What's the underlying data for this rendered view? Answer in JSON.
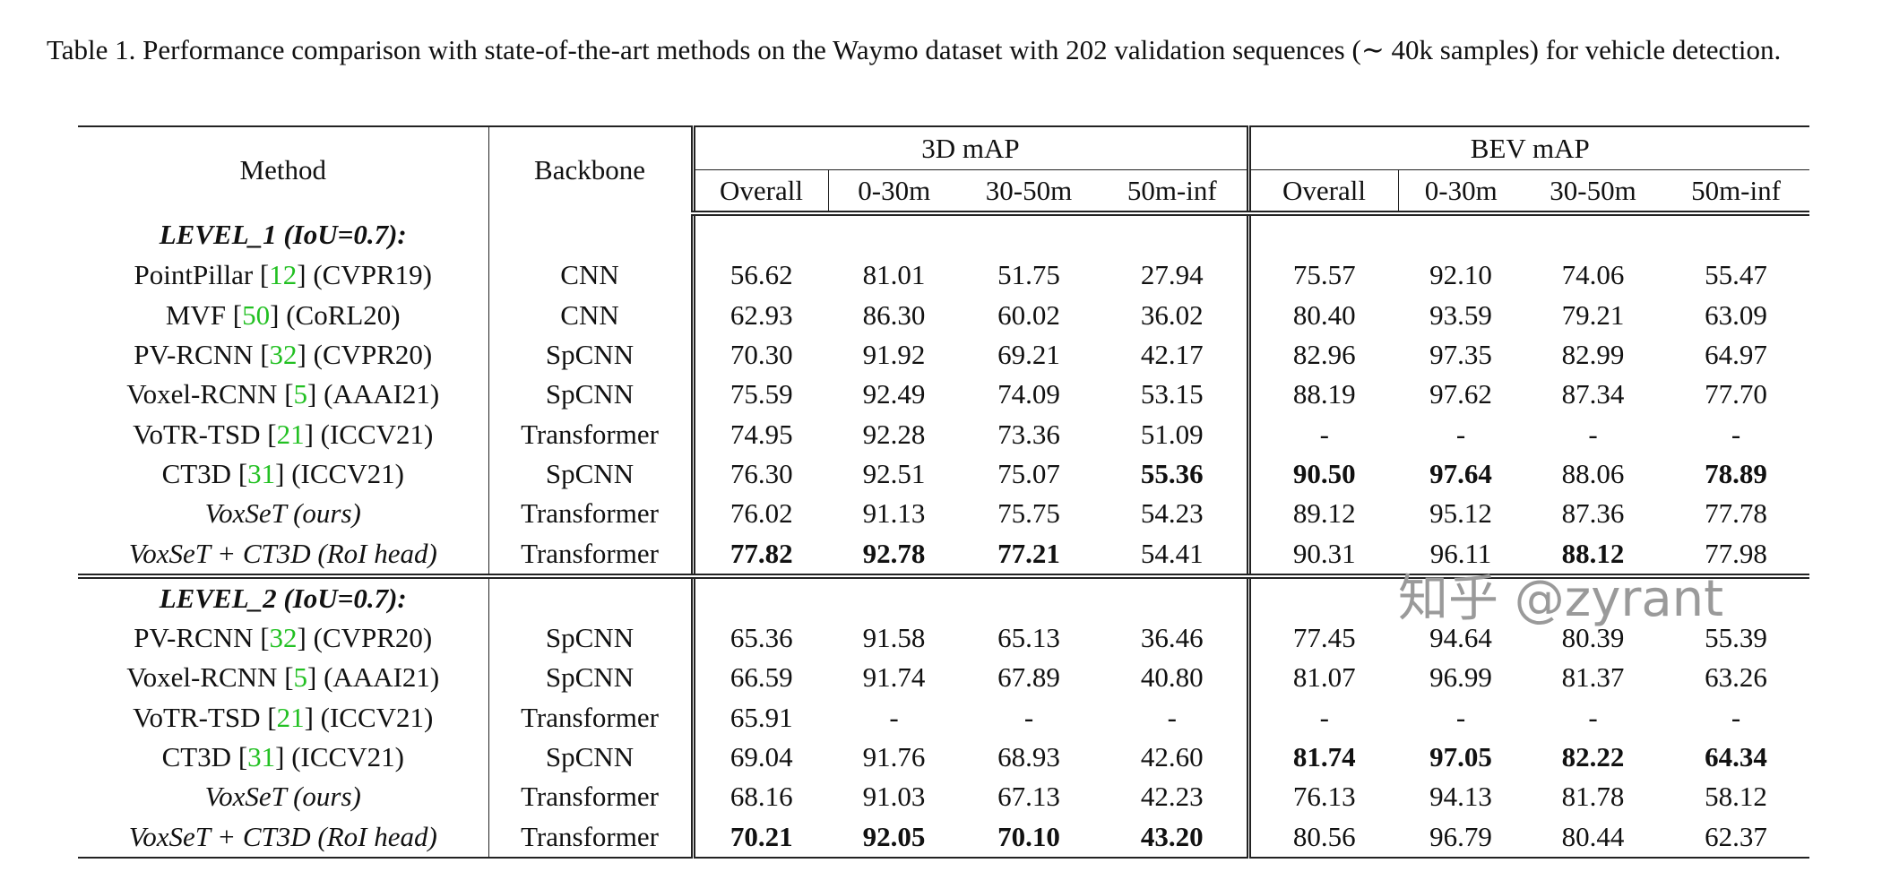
{
  "caption": "Table 1. Performance comparison with state-of-the-art methods on the Waymo dataset with 202 validation sequences (∼ 40k samples) for vehicle detection.",
  "header": {
    "method": "Method",
    "backbone": "Backbone",
    "group_3d": "3D mAP",
    "group_bev": "BEV mAP",
    "subcols": [
      "Overall",
      "0-30m",
      "30-50m",
      "50m-inf"
    ]
  },
  "sections": [
    {
      "label": "LEVEL_1 (IoU=0.7):",
      "rows": [
        {
          "pre": "PointPillar [",
          "ref": "12",
          "post": "] (CVPR19)",
          "italic": false,
          "backbone": "CNN",
          "values": [
            "56.62",
            "81.01",
            "51.75",
            "27.94",
            "75.57",
            "92.10",
            "74.06",
            "55.47"
          ],
          "bold": []
        },
        {
          "pre": "MVF [",
          "ref": "50",
          "post": "] (CoRL20)",
          "italic": false,
          "backbone": "CNN",
          "values": [
            "62.93",
            "86.30",
            "60.02",
            "36.02",
            "80.40",
            "93.59",
            "79.21",
            "63.09"
          ],
          "bold": []
        },
        {
          "pre": "PV-RCNN [",
          "ref": "32",
          "post": "] (CVPR20)",
          "italic": false,
          "backbone": "SpCNN",
          "values": [
            "70.30",
            "91.92",
            "69.21",
            "42.17",
            "82.96",
            "97.35",
            "82.99",
            "64.97"
          ],
          "bold": []
        },
        {
          "pre": "Voxel-RCNN [",
          "ref": "5",
          "post": "] (AAAI21)",
          "italic": false,
          "backbone": "SpCNN",
          "values": [
            "75.59",
            "92.49",
            "74.09",
            "53.15",
            "88.19",
            "97.62",
            "87.34",
            "77.70"
          ],
          "bold": []
        },
        {
          "pre": "VoTR-TSD [",
          "ref": "21",
          "post": "] (ICCV21)",
          "italic": false,
          "backbone": "Transformer",
          "values": [
            "74.95",
            "92.28",
            "73.36",
            "51.09",
            "-",
            "-",
            "-",
            "-"
          ],
          "bold": []
        },
        {
          "pre": "CT3D [",
          "ref": "31",
          "post": "] (ICCV21)",
          "italic": false,
          "backbone": "SpCNN",
          "values": [
            "76.30",
            "92.51",
            "75.07",
            "55.36",
            "90.50",
            "97.64",
            "88.06",
            "78.89"
          ],
          "bold": [
            3,
            4,
            5,
            7
          ]
        },
        {
          "pre": "VoxSeT (ours)",
          "ref": "",
          "post": "",
          "italic": true,
          "backbone": "Transformer",
          "values": [
            "76.02",
            "91.13",
            "75.75",
            "54.23",
            "89.12",
            "95.12",
            "87.36",
            "77.78"
          ],
          "bold": []
        },
        {
          "pre": "VoxSeT + CT3D (RoI head)",
          "ref": "",
          "post": "",
          "italic": true,
          "backbone": "Transformer",
          "values": [
            "77.82",
            "92.78",
            "77.21",
            "54.41",
            "90.31",
            "96.11",
            "88.12",
            "77.98"
          ],
          "bold": [
            0,
            1,
            2,
            6
          ]
        }
      ]
    },
    {
      "label": "LEVEL_2 (IoU=0.7):",
      "rows": [
        {
          "pre": "PV-RCNN [",
          "ref": "32",
          "post": "] (CVPR20)",
          "italic": false,
          "backbone": "SpCNN",
          "values": [
            "65.36",
            "91.58",
            "65.13",
            "36.46",
            "77.45",
            "94.64",
            "80.39",
            "55.39"
          ],
          "bold": []
        },
        {
          "pre": "Voxel-RCNN [",
          "ref": "5",
          "post": "] (AAAI21)",
          "italic": false,
          "backbone": "SpCNN",
          "values": [
            "66.59",
            "91.74",
            "67.89",
            "40.80",
            "81.07",
            "96.99",
            "81.37",
            "63.26"
          ],
          "bold": []
        },
        {
          "pre": "VoTR-TSD [",
          "ref": "21",
          "post": "] (ICCV21)",
          "italic": false,
          "backbone": "Transformer",
          "values": [
            "65.91",
            "-",
            "-",
            "-",
            "-",
            "-",
            "-",
            "-"
          ],
          "bold": []
        },
        {
          "pre": "CT3D [",
          "ref": "31",
          "post": "] (ICCV21)",
          "italic": false,
          "backbone": "SpCNN",
          "values": [
            "69.04",
            "91.76",
            "68.93",
            "42.60",
            "81.74",
            "97.05",
            "82.22",
            "64.34"
          ],
          "bold": [
            4,
            5,
            6,
            7
          ]
        },
        {
          "pre": "VoxSeT (ours)",
          "ref": "",
          "post": "",
          "italic": true,
          "backbone": "Transformer",
          "values": [
            "68.16",
            "91.03",
            "67.13",
            "42.23",
            "76.13",
            "94.13",
            "81.78",
            "58.12"
          ],
          "bold": []
        },
        {
          "pre": "VoxSeT + CT3D (RoI head)",
          "ref": "",
          "post": "",
          "italic": true,
          "backbone": "Transformer",
          "values": [
            "70.21",
            "92.05",
            "70.10",
            "43.20",
            "80.56",
            "96.79",
            "80.44",
            "62.37"
          ],
          "bold": [
            0,
            1,
            2,
            3
          ]
        }
      ]
    }
  ],
  "colors": {
    "citation": "#22c022",
    "text": "#111111"
  },
  "watermark": "知乎 @zyrant"
}
